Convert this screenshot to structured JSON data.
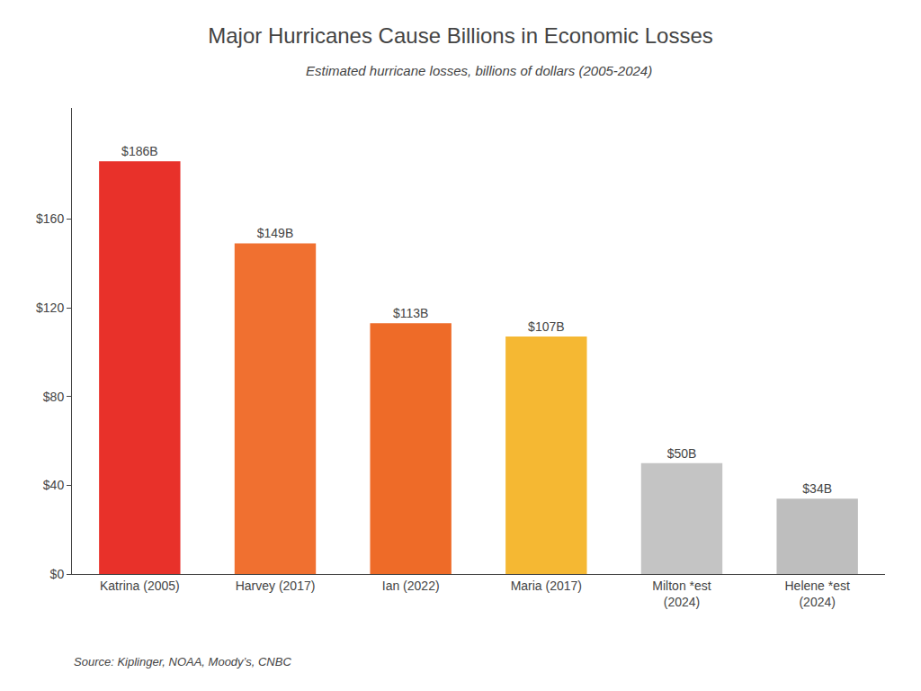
{
  "chart_data": {
    "type": "bar",
    "title": "Major Hurricanes Cause Billions in Economic Losses",
    "subtitle": "Estimated hurricane losses, billions of dollars (2005-2024)",
    "source": "Source: Kiplinger, NOAA, Moody’s, CNBC",
    "categories": [
      "Katrina (2005)",
      "Harvey (2017)",
      "Ian (2022)",
      "Maria (2017)",
      "Milton *est\n(2024)",
      "Helene *est\n(2024)"
    ],
    "values": [
      186,
      149,
      113,
      107,
      50,
      34
    ],
    "value_labels": [
      "$186B",
      "$149B",
      "$113B",
      "$107B",
      "$50B",
      "$34B"
    ],
    "data_labels": true,
    "colors": [
      "#E8312A",
      "#F07030",
      "#EE6B28",
      "#F5B833",
      "#C4C4C4",
      "#BEBEBE"
    ],
    "ylim": [
      0,
      210
    ],
    "yticks": [
      {
        "value": 0,
        "label": "$0"
      },
      {
        "value": 40,
        "label": "$40"
      },
      {
        "value": 80,
        "label": "$80"
      },
      {
        "value": 120,
        "label": "$120"
      },
      {
        "value": 160,
        "label": "$160"
      }
    ],
    "grid": false
  }
}
